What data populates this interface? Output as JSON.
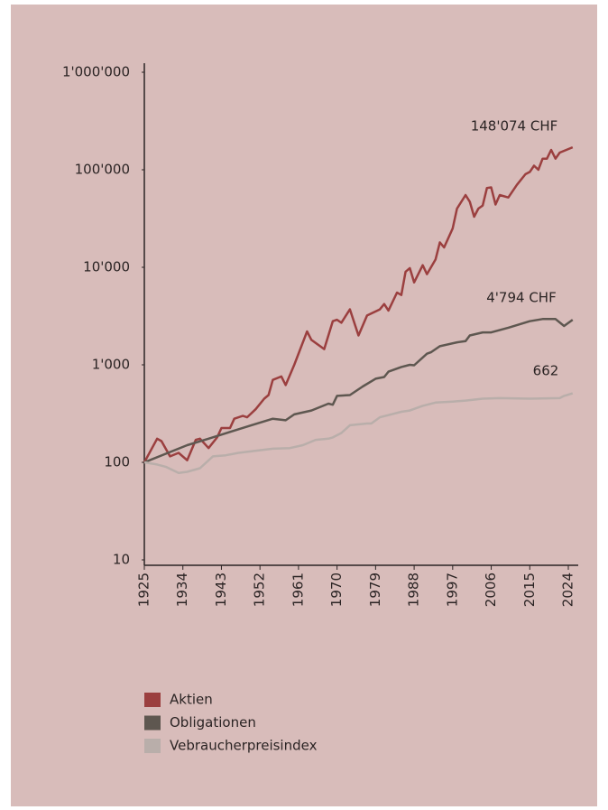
{
  "chart_data": {
    "type": "line",
    "log_scale_y": true,
    "xlim": [
      1925,
      2026
    ],
    "xticks": [
      1925,
      1934,
      1943,
      1952,
      1961,
      1970,
      1979,
      1988,
      1997,
      2006,
      2015,
      2024
    ],
    "ylim": [
      10,
      1000000
    ],
    "yticks": [
      10,
      100,
      {
        "value": 1000,
        "label": "1'000"
      },
      {
        "value": 10000,
        "label": "10'000"
      },
      {
        "value": 100000,
        "label": "100'000"
      },
      {
        "value": 1000000,
        "label": "1'000'000"
      }
    ],
    "grid": false,
    "legend": "bottom-left",
    "series": [
      {
        "name": "Aktien",
        "color": "#9b3f3f",
        "x": [
          1925,
          1928,
          1929,
          1931,
          1933,
          1935,
          1937,
          1938,
          1940,
          1942,
          1943,
          1945,
          1946,
          1948,
          1949,
          1951,
          1953,
          1954,
          1955,
          1957,
          1958,
          1960,
          1963,
          1964,
          1967,
          1969,
          1970,
          1971,
          1973,
          1975,
          1977,
          1980,
          1981,
          1982,
          1984,
          1985,
          1986,
          1987,
          1988,
          1990,
          1991,
          1993,
          1994,
          1995,
          1997,
          1998,
          2000,
          2001,
          2002,
          2003,
          2004,
          2005,
          2006,
          2007,
          2008,
          2010,
          2012,
          2014,
          2015,
          2016,
          2017,
          2018,
          2019,
          2020,
          2021,
          2022,
          2025
        ],
        "values": [
          100,
          175,
          165,
          115,
          125,
          105,
          170,
          175,
          140,
          180,
          225,
          225,
          280,
          300,
          290,
          350,
          450,
          490,
          700,
          760,
          620,
          1000,
          2200,
          1800,
          1450,
          2800,
          2900,
          2700,
          3700,
          2000,
          3200,
          3700,
          4200,
          3600,
          5500,
          5200,
          9000,
          9800,
          7000,
          10500,
          8500,
          12000,
          18000,
          16000,
          25000,
          40000,
          55000,
          47000,
          33000,
          40000,
          43000,
          65000,
          66000,
          44000,
          55000,
          52000,
          70000,
          90000,
          95000,
          110000,
          100000,
          130000,
          130000,
          160000,
          130000,
          150000,
          170000
        ]
      },
      {
        "name": "Obligationen",
        "color": "#5e5750",
        "x": [
          1925,
          1935,
          1940,
          1945,
          1950,
          1955,
          1958,
          1960,
          1964,
          1968,
          1969,
          1970,
          1973,
          1976,
          1979,
          1981,
          1982,
          1985,
          1987,
          1988,
          1991,
          1992,
          1994,
          1998,
          2000,
          2001,
          2004,
          2006,
          2010,
          2015,
          2018,
          2021,
          2023,
          2025
        ],
        "values": [
          100,
          150,
          175,
          205,
          240,
          280,
          270,
          310,
          340,
          400,
          390,
          480,
          490,
          600,
          720,
          750,
          850,
          950,
          1000,
          990,
          1300,
          1350,
          1550,
          1700,
          1750,
          2000,
          2150,
          2150,
          2400,
          2800,
          2950,
          2950,
          2500,
          2900
        ]
      },
      {
        "name": "Vebraucherpreisindex",
        "color": "#b9aeaa",
        "x": [
          1925,
          1928,
          1930,
          1933,
          1935,
          1938,
          1941,
          1944,
          1947,
          1950,
          1955,
          1959,
          1962,
          1965,
          1968,
          1969,
          1971,
          1973,
          1977,
          1978,
          1980,
          1982,
          1985,
          1987,
          1990,
          1993,
          1997,
          2000,
          2004,
          2008,
          2015,
          2022,
          2023,
          2025
        ],
        "values": [
          100,
          95,
          90,
          78,
          80,
          87,
          115,
          118,
          125,
          130,
          138,
          140,
          150,
          170,
          175,
          180,
          200,
          240,
          250,
          250,
          290,
          305,
          330,
          340,
          380,
          410,
          420,
          430,
          450,
          455,
          450,
          455,
          480,
          510
        ]
      }
    ],
    "annotations": [
      "148'074 CHF",
      "4'794 CHF",
      "662"
    ]
  }
}
